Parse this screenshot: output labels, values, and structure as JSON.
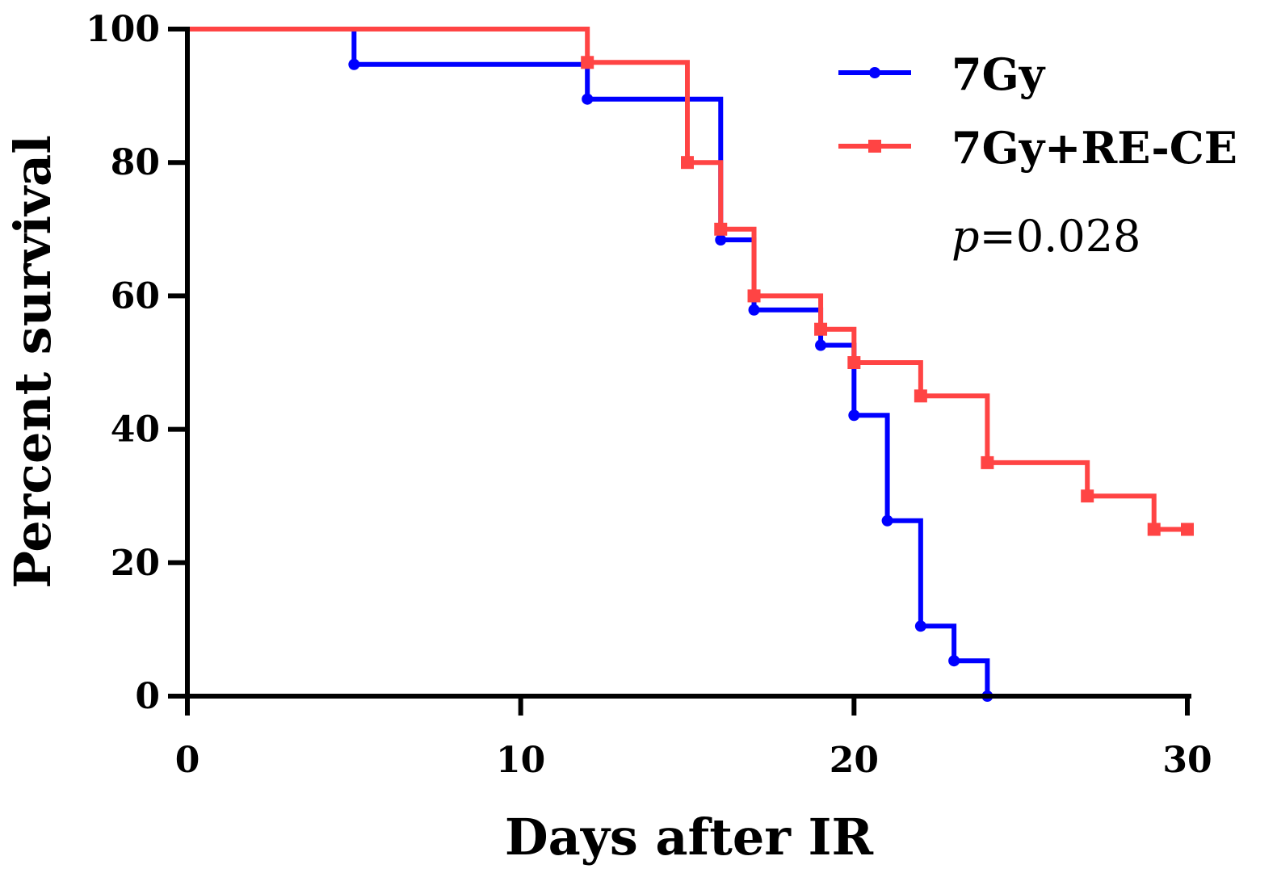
{
  "chart_data": {
    "type": "line",
    "subtype": "kaplan-meier-step",
    "title": "",
    "xlabel": "Days after IR",
    "ylabel": "Percent survival",
    "xlim": [
      0,
      30
    ],
    "ylim": [
      0,
      100
    ],
    "xticks": [
      0,
      10,
      20,
      30
    ],
    "yticks": [
      0,
      20,
      40,
      60,
      80,
      100
    ],
    "xtick_labels": [
      "0",
      "10",
      "20",
      "30"
    ],
    "ytick_labels": [
      "0",
      "20",
      "40",
      "60",
      "80",
      "100"
    ],
    "grid": false,
    "legend_position": "top-right",
    "annotation": {
      "italic_part": "p",
      "rest": "=0.028"
    },
    "series": [
      {
        "name": "7Gy",
        "color": "#0000ff",
        "marker": "circle",
        "steps": [
          [
            0,
            100
          ],
          [
            5,
            94.7
          ],
          [
            12,
            89.5
          ],
          [
            16,
            68.4
          ],
          [
            17,
            57.9
          ],
          [
            19,
            52.6
          ],
          [
            20,
            42.1
          ],
          [
            21,
            26.3
          ],
          [
            22,
            10.5
          ],
          [
            23,
            5.3
          ],
          [
            24,
            0
          ]
        ],
        "markers": [
          [
            5,
            94.7
          ],
          [
            12,
            89.5
          ],
          [
            16,
            68.4
          ],
          [
            17,
            57.9
          ],
          [
            19,
            52.6
          ],
          [
            20,
            42.1
          ],
          [
            21,
            26.3
          ],
          [
            22,
            10.5
          ],
          [
            23,
            5.3
          ],
          [
            24,
            0
          ]
        ]
      },
      {
        "name": "7Gy+RE-CE",
        "color": "#ff4444",
        "marker": "square",
        "steps": [
          [
            0,
            100
          ],
          [
            12,
            95
          ],
          [
            15,
            80
          ],
          [
            16,
            70
          ],
          [
            17,
            60
          ],
          [
            19,
            55
          ],
          [
            20,
            50
          ],
          [
            22,
            45
          ],
          [
            24,
            35
          ],
          [
            27,
            30
          ],
          [
            29,
            25
          ],
          [
            30,
            25
          ]
        ],
        "markers": [
          [
            12,
            95
          ],
          [
            15,
            80
          ],
          [
            16,
            70
          ],
          [
            17,
            60
          ],
          [
            19,
            55
          ],
          [
            20,
            50
          ],
          [
            22,
            45
          ],
          [
            24,
            35
          ],
          [
            27,
            30
          ],
          [
            29,
            25
          ],
          [
            30,
            25
          ]
        ]
      }
    ]
  }
}
